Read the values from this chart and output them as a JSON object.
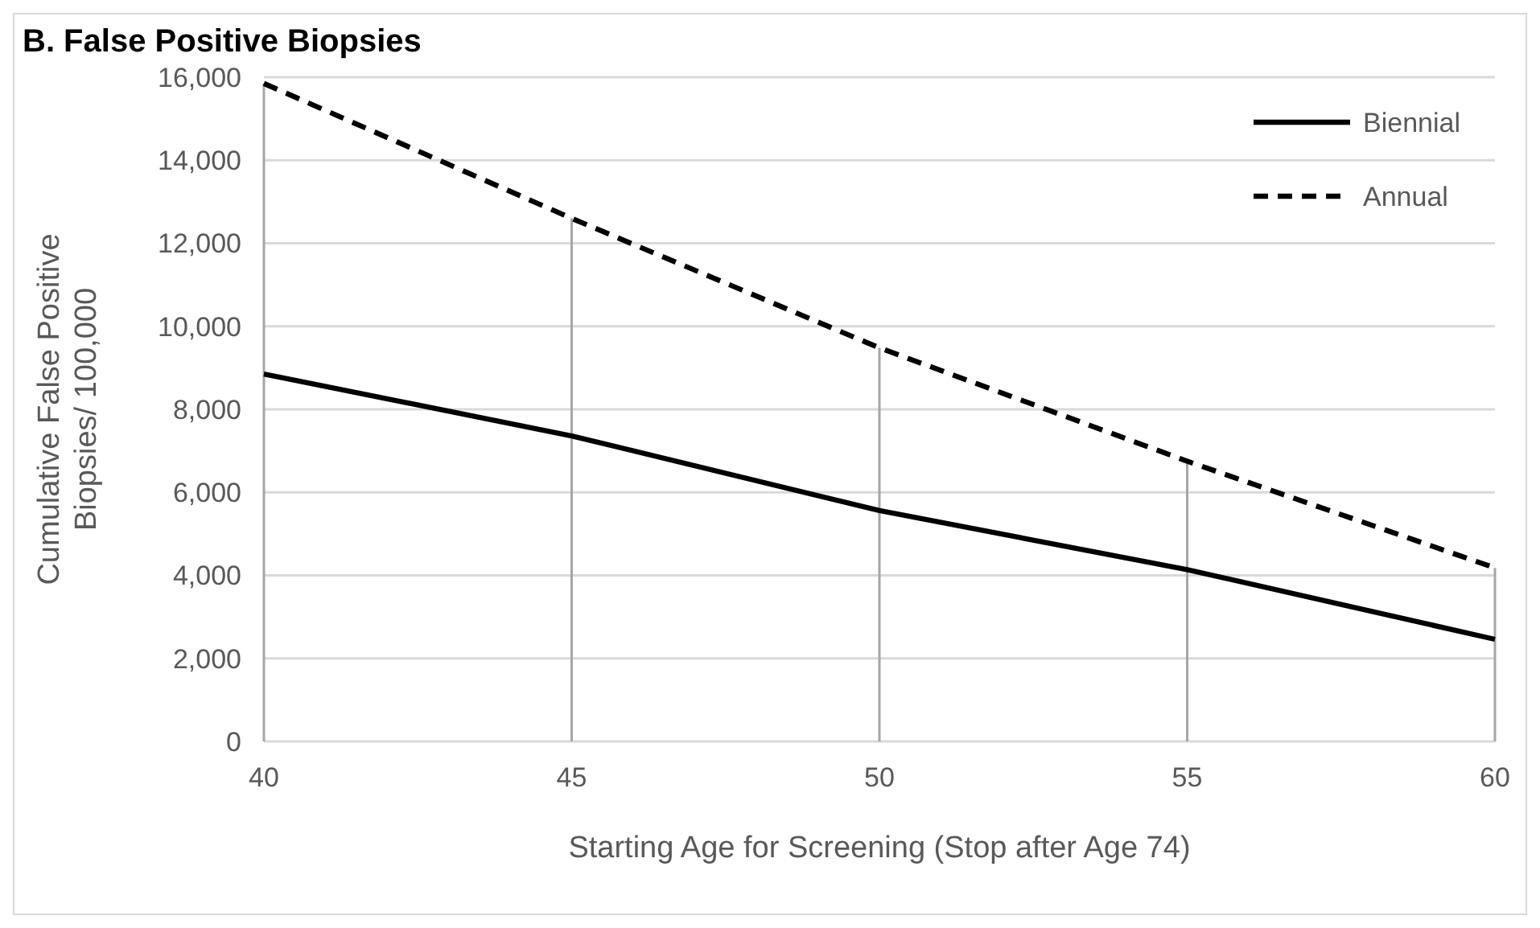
{
  "chart_data": {
    "type": "line",
    "title": "B. False Positive Biopsies",
    "xlabel": "Starting Age for Screening (Stop after Age 74)",
    "ylabel": "Cumulative False Positive Biopsies/ 100,000",
    "x": [
      40,
      45,
      50,
      55,
      60
    ],
    "series": [
      {
        "name": "Biennial",
        "color": "#000000",
        "values": [
          8850,
          7360,
          5560,
          4140,
          2460
        ],
        "line_style": "solid"
      },
      {
        "name": "Annual",
        "color": "#000000",
        "values": [
          15850,
          12600,
          9480,
          6750,
          4180
        ],
        "line_style": "dashed"
      }
    ],
    "xlim": [
      40,
      60
    ],
    "xticks": [
      40,
      45,
      50,
      55,
      60
    ],
    "ylim": [
      0,
      16000
    ],
    "yticks": [
      {
        "value": 0,
        "label": "0"
      },
      {
        "value": 2000,
        "label": "2,000"
      },
      {
        "value": 4000,
        "label": "4,000"
      },
      {
        "value": 6000,
        "label": "6,000"
      },
      {
        "value": 8000,
        "label": "8,000"
      },
      {
        "value": 10000,
        "label": "10,000"
      },
      {
        "value": 12000,
        "label": "12,000"
      },
      {
        "value": 14000,
        "label": "14,000"
      },
      {
        "value": 16000,
        "label": "16,000"
      }
    ],
    "grid": "y",
    "legend": "top right",
    "marker": "none",
    "ref_lines": [
      {
        "axis": "x",
        "value": 40,
        "color": "#a6a6a6"
      },
      {
        "axis": "x",
        "value": 45,
        "color": "#a6a6a6"
      },
      {
        "axis": "x",
        "value": 50,
        "color": "#a6a6a6"
      },
      {
        "axis": "x",
        "value": 55,
        "color": "#a6a6a6"
      },
      {
        "axis": "x",
        "value": 60,
        "color": "#a6a6a6"
      }
    ]
  }
}
